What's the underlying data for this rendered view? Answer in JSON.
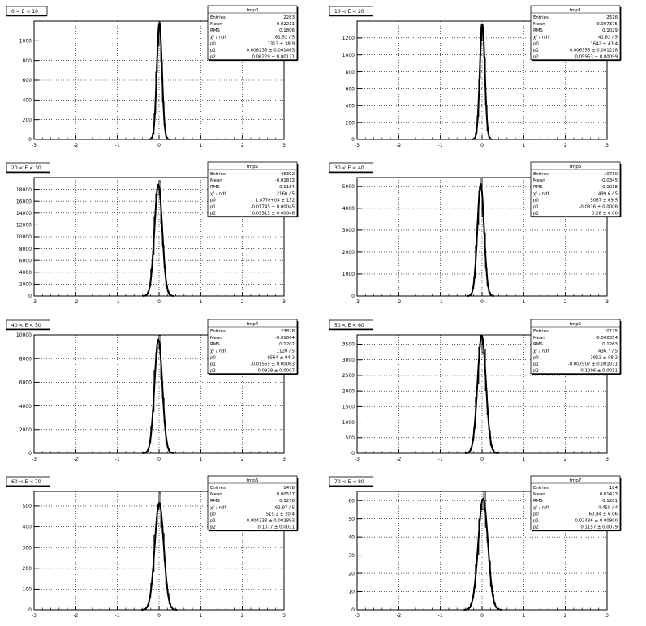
{
  "chart_data": [
    {
      "type": "histogram",
      "title": "0 < E < 10",
      "xlim": [
        -3,
        3
      ],
      "ylim": [
        0,
        1200
      ],
      "xticks": [
        -3,
        -2,
        -1,
        0,
        1,
        2,
        3
      ],
      "yticks": [
        0,
        200,
        400,
        600,
        800,
        1000
      ],
      "peak": 1180,
      "sigma": 0.062,
      "mean": 0.008,
      "grid": true,
      "stats": {
        "name": "tmp0",
        "rows": [
          [
            "Entries",
            "2283"
          ],
          [
            "Mean",
            "0.02211"
          ],
          [
            "RMS",
            "0.1806"
          ],
          [
            "χ² / ndf",
            "81.52 / 5"
          ],
          [
            "p0",
            "1313 ± 38.9"
          ],
          [
            "p1",
            "0.008235 ± 0.001463"
          ],
          [
            "p2",
            "0.06229 ± 0.00121"
          ]
        ]
      }
    },
    {
      "type": "histogram",
      "title": "10 < E < 20",
      "xlim": [
        -3,
        3
      ],
      "ylim": [
        0,
        1400
      ],
      "xticks": [
        -3,
        -2,
        -1,
        0,
        1,
        2,
        3
      ],
      "yticks": [
        0,
        200,
        400,
        600,
        800,
        1000,
        1200
      ],
      "peak": 1360,
      "sigma": 0.06,
      "mean": 0.006,
      "grid": true,
      "stats": {
        "name": "tmp1",
        "rows": [
          [
            "Entries",
            "2516"
          ],
          [
            "Mean",
            "0.007375"
          ],
          [
            "RMS",
            "0.1029"
          ],
          [
            "χ² / ndf",
            "41.82 / 5"
          ],
          [
            "p0",
            "1642 ± 43.4"
          ],
          [
            "p1",
            "0.006355 ± 0.001218"
          ],
          [
            "p2",
            "0.05953 ± 0.00099"
          ]
        ]
      }
    },
    {
      "type": "histogram",
      "title": "20 < E < 30",
      "xlim": [
        -3,
        3
      ],
      "ylim": [
        0,
        20000
      ],
      "xticks": [
        -3,
        -2,
        -1,
        0,
        1,
        2,
        3
      ],
      "yticks": [
        0,
        2000,
        4000,
        6000,
        8000,
        10000,
        12000,
        14000,
        16000,
        18000
      ],
      "peak": 18800,
      "sigma": 0.093,
      "mean": -0.017,
      "grid": true,
      "stats": {
        "name": "tmp2",
        "rows": [
          [
            "Entries",
            "46392"
          ],
          [
            "Mean",
            "-0.01813"
          ],
          [
            "RMS",
            "0.1184"
          ],
          [
            "χ² / ndf",
            "2160 / 5"
          ],
          [
            "p0",
            "1.877e+04 ± 132"
          ],
          [
            "p1",
            "-0.01745 ± 0.00045"
          ],
          [
            "p2",
            "0.09315 ± 0.00048"
          ]
        ]
      }
    },
    {
      "type": "histogram",
      "title": "30 < E < 40",
      "xlim": [
        -3,
        3
      ],
      "ylim": [
        0,
        5400
      ],
      "xticks": [
        -3,
        -2,
        -1,
        0,
        1,
        2,
        3
      ],
      "yticks": [
        0,
        1000,
        2000,
        3000,
        4000,
        5000
      ],
      "peak": 5100,
      "sigma": 0.08,
      "mean": -0.032,
      "grid": true,
      "stats": {
        "name": "tmp3",
        "rows": [
          [
            "Entries",
            "10710"
          ],
          [
            "Mean",
            "-0.0345"
          ],
          [
            "RMS",
            "0.1018"
          ],
          [
            "χ² / ndf",
            "499.6 / 5"
          ],
          [
            "p0",
            "5067 ± 69.5"
          ],
          [
            "p1",
            "-0.0316 ± 0.0008"
          ],
          [
            "p2",
            "0.08 ± 0.00"
          ]
        ]
      }
    },
    {
      "type": "histogram",
      "title": "40 < E < 50",
      "xlim": [
        -3,
        3
      ],
      "ylim": [
        0,
        10000
      ],
      "xticks": [
        -3,
        -2,
        -1,
        0,
        1,
        2,
        3
      ],
      "yticks": [
        0,
        2000,
        4000,
        6000,
        8000,
        10000
      ],
      "peak": 9600,
      "sigma": 0.094,
      "mean": -0.016,
      "grid": true,
      "stats": {
        "name": "tmp4",
        "rows": [
          [
            "Entries",
            "23828"
          ],
          [
            "Mean",
            "-0.01664"
          ],
          [
            "RMS",
            "0.1202"
          ],
          [
            "χ² / ndf",
            "1120 / 5"
          ],
          [
            "p0",
            "9564 ± 94.2"
          ],
          [
            "p1",
            "-0.01565 ± 0.00063"
          ],
          [
            "p2",
            "0.0939 ± 0.0007"
          ]
        ]
      }
    },
    {
      "type": "histogram",
      "title": "50 < E < 60",
      "xlim": [
        -3,
        3
      ],
      "ylim": [
        0,
        3800
      ],
      "xticks": [
        -3,
        -2,
        -1,
        0,
        1,
        2,
        3
      ],
      "yticks": [
        0,
        500,
        1000,
        1500,
        2000,
        2500,
        3000,
        3500
      ],
      "peak": 3780,
      "sigma": 0.1006,
      "mean": -0.008,
      "grid": true,
      "stats": {
        "name": "tmp5",
        "rows": [
          [
            "Entries",
            "10175"
          ],
          [
            "Mean",
            "-0.008354"
          ],
          [
            "RMS",
            "0.1263"
          ],
          [
            "χ² / ndf",
            "436.7 / 5"
          ],
          [
            "p0",
            "3813 ± 58.2"
          ],
          [
            "p1",
            "-0.007907 ± 0.001031"
          ],
          [
            "p2",
            "0.1006 ± 0.0011"
          ]
        ]
      }
    },
    {
      "type": "histogram",
      "title": "60 < E < 70",
      "xlim": [
        -3,
        3
      ],
      "ylim": [
        0,
        570
      ],
      "xticks": [
        -3,
        -2,
        -1,
        0,
        1,
        2,
        3
      ],
      "yticks": [
        0,
        100,
        200,
        300,
        400,
        500
      ],
      "peak": 515,
      "sigma": 0.1077,
      "mean": 0.004,
      "grid": true,
      "stats": {
        "name": "tmp6",
        "rows": [
          [
            "Entries",
            "1478"
          ],
          [
            "Mean",
            "0.00517"
          ],
          [
            "RMS",
            "0.1278"
          ],
          [
            "χ² / ndf",
            "61.97 / 5"
          ],
          [
            "p0",
            "515.2 ± 20.4"
          ],
          [
            "p1",
            "0.004333 ± 0.002893"
          ],
          [
            "p2",
            "0.1077 ± 0.0031"
          ]
        ]
      }
    },
    {
      "type": "histogram",
      "title": "70 < E < 80",
      "xlim": [
        -3,
        3
      ],
      "ylim": [
        0,
        65
      ],
      "xticks": [
        -3,
        -2,
        -1,
        0,
        1,
        2,
        3
      ],
      "yticks": [
        0,
        10,
        20,
        30,
        40,
        50,
        60
      ],
      "peak": 61,
      "sigma": 0.1157,
      "mean": 0.024,
      "grid": true,
      "stats": {
        "name": "tmp7",
        "rows": [
          [
            "Entries",
            "184"
          ],
          [
            "Mean",
            "0.01423"
          ],
          [
            "RMS",
            "0.1281"
          ],
          [
            "χ² / ndf",
            "4.455 / 4"
          ],
          [
            "p0",
            "60.94 ± 6.06"
          ],
          [
            "p1",
            "0.02436 ± 0.00900"
          ],
          [
            "p2",
            "0.1157 ± 0.0079"
          ]
        ]
      }
    }
  ]
}
